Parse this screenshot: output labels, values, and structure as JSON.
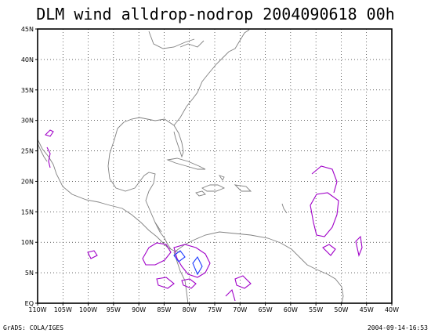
{
  "title": "DLM wind alldrop-nodrop 2004090618 00h",
  "footer_left": "GrADS: COLA/IGES",
  "footer_right": "2004-09-14-16:53",
  "colors": {
    "coast": "#808080",
    "grid": "#000000",
    "frame": "#000000",
    "contour_magenta": "#a000c8",
    "contour_blue": "#1e3cff"
  },
  "map": {
    "lon_range": [
      -110,
      -40
    ],
    "lat_range": [
      0,
      45
    ],
    "lon_ticks": [
      {
        "value": -110,
        "label": "110W"
      },
      {
        "value": -105,
        "label": "105W"
      },
      {
        "value": -100,
        "label": "100W"
      },
      {
        "value": -95,
        "label": "95W"
      },
      {
        "value": -90,
        "label": "90W"
      },
      {
        "value": -85,
        "label": "85W"
      },
      {
        "value": -80,
        "label": "80W"
      },
      {
        "value": -75,
        "label": "75W"
      },
      {
        "value": -70,
        "label": "70W"
      },
      {
        "value": -65,
        "label": "65W"
      },
      {
        "value": -60,
        "label": "60W"
      },
      {
        "value": -55,
        "label": "55W"
      },
      {
        "value": -50,
        "label": "50W"
      },
      {
        "value": -45,
        "label": "45W"
      },
      {
        "value": -40,
        "label": "40W"
      }
    ],
    "lat_ticks": [
      {
        "value": 0,
        "label": "EQ"
      },
      {
        "value": 5,
        "label": "5N"
      },
      {
        "value": 10,
        "label": "10N"
      },
      {
        "value": 15,
        "label": "15N"
      },
      {
        "value": 20,
        "label": "20N"
      },
      {
        "value": 25,
        "label": "25N"
      },
      {
        "value": 30,
        "label": "30N"
      },
      {
        "value": 35,
        "label": "35N"
      },
      {
        "value": 40,
        "label": "40N"
      },
      {
        "value": 45,
        "label": "45N"
      }
    ]
  }
}
